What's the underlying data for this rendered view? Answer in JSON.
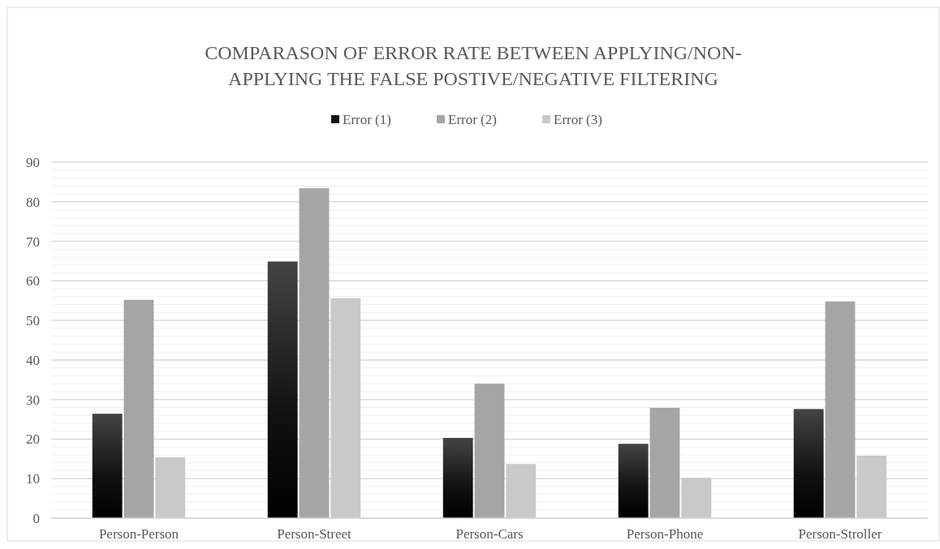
{
  "chart_data": {
    "type": "bar",
    "title": "COMPARASON OF ERROR RATE BETWEEN APPLYING/NON-\nAPPLYING THE FALSE POSTIVE/NEGATIVE FILTERING",
    "categories": [
      "Person-Person",
      "Person-Street",
      "Person-Cars",
      "Person-Phone",
      "Person-Stroller"
    ],
    "series": [
      {
        "name": "Error (1)",
        "color": "#111111",
        "values": [
          26.4,
          64.9,
          20.3,
          18.8,
          27.6
        ]
      },
      {
        "name": "Error (2)",
        "color": "#a5a5a5",
        "values": [
          55.2,
          83.4,
          34,
          27.9,
          54.8
        ]
      },
      {
        "name": "Error (3)",
        "color": "#c9c9c9",
        "values": [
          15.4,
          55.6,
          13.7,
          10.2,
          15.8
        ]
      }
    ],
    "ylim": [
      0,
      90
    ],
    "yticks": [
      0,
      {
        "value": 2,
        "label": null
      },
      {
        "value": 4,
        "label": null
      },
      {
        "value": 6,
        "label": null
      },
      {
        "value": 8,
        "label": null
      },
      10,
      {
        "value": 12,
        "label": null
      },
      {
        "value": 14,
        "label": null
      },
      {
        "value": 16,
        "label": null
      },
      {
        "value": 18,
        "label": null
      },
      20,
      {
        "value": 22,
        "label": null
      },
      {
        "value": 24,
        "label": null
      },
      {
        "value": 26,
        "label": null
      },
      {
        "value": 28,
        "label": null
      },
      30,
      {
        "value": 32,
        "label": null
      },
      {
        "value": 34,
        "label": null
      },
      {
        "value": 36,
        "label": null
      },
      {
        "value": 38,
        "label": null
      },
      40,
      {
        "value": 42,
        "label": null
      },
      {
        "value": 44,
        "label": null
      },
      {
        "value": 46,
        "label": null
      },
      {
        "value": 48,
        "label": null
      },
      50,
      {
        "value": 52,
        "label": null
      },
      {
        "value": 54,
        "label": null
      },
      {
        "value": 56,
        "label": null
      },
      {
        "value": 58,
        "label": null
      },
      60,
      {
        "value": 62,
        "label": null
      },
      {
        "value": 64,
        "label": null
      },
      {
        "value": 66,
        "label": null
      },
      {
        "value": 68,
        "label": null
      },
      70,
      {
        "value": 72,
        "label": null
      },
      {
        "value": 74,
        "label": null
      },
      {
        "value": 76,
        "label": null
      },
      {
        "value": 78,
        "label": null
      },
      80,
      {
        "value": 82,
        "label": null
      },
      {
        "value": 84,
        "label": null
      },
      {
        "value": 86,
        "label": null
      },
      {
        "value": 88,
        "label": null
      },
      90
    ],
    "grid": true,
    "legend": "top"
  }
}
